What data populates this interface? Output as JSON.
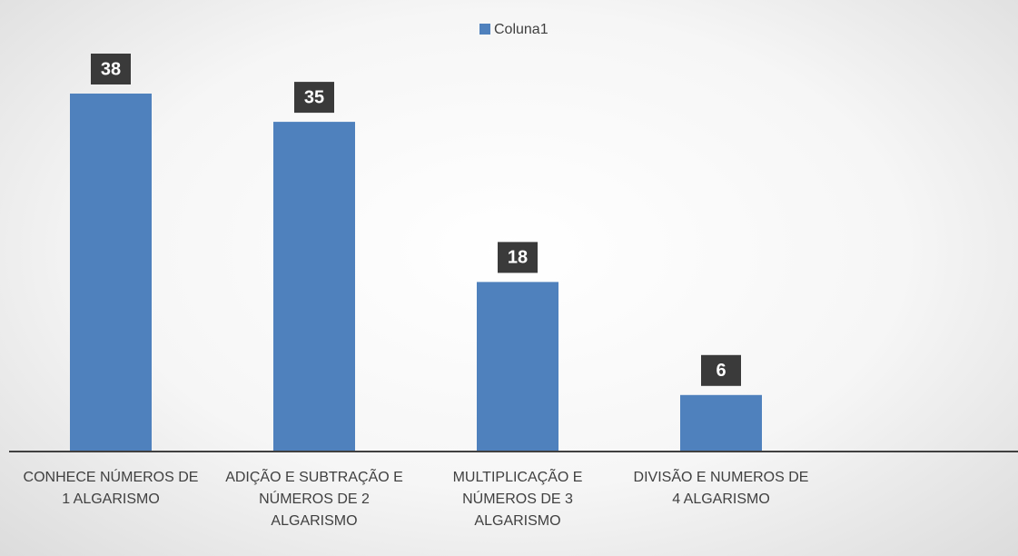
{
  "chart_data": {
    "type": "bar",
    "categories": [
      "CONHECE NÚMEROS DE 1 ALGARISMO",
      "ADIÇÃO E SUBTRAÇÃO E NÚMEROS DE 2 ALGARISMO",
      "MULTIPLICAÇÃO E NÚMEROS DE 3 ALGARISMO",
      "DIVISÃO E NUMEROS DE 4 ALGARISMO"
    ],
    "series": [
      {
        "name": "Coluna1",
        "color": "#4f81bd",
        "values": [
          38,
          35,
          18,
          6
        ]
      }
    ],
    "legend": "top"
  }
}
